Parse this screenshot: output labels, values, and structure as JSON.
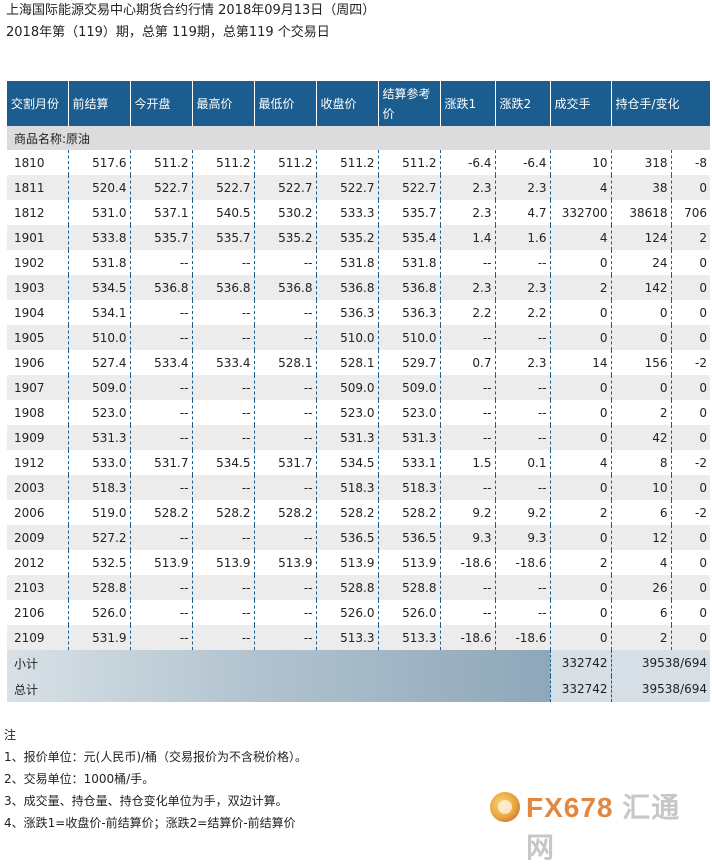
{
  "header": {
    "title": "上海国际能源交易中心期货合约行情 2018年09月13日（周四）",
    "subtitle": "2018年第（119）期，总第 119期，总第119 个交易日"
  },
  "table": {
    "columns": [
      "交割月份",
      "前结算",
      "今开盘",
      "最高价",
      "最低价",
      "收盘价",
      "结算参考价",
      "涨跌1",
      "涨跌2",
      "成交手",
      "持仓手/变化"
    ],
    "product_label": "商品名称:原油",
    "rows": [
      [
        "1810",
        "517.6",
        "511.2",
        "511.2",
        "511.2",
        "511.2",
        "511.2",
        "-6.4",
        "-6.4",
        "10",
        "318",
        "-8"
      ],
      [
        "1811",
        "520.4",
        "522.7",
        "522.7",
        "522.7",
        "522.7",
        "522.7",
        "2.3",
        "2.3",
        "4",
        "38",
        "0"
      ],
      [
        "1812",
        "531.0",
        "537.1",
        "540.5",
        "530.2",
        "533.3",
        "535.7",
        "2.3",
        "4.7",
        "332700",
        "38618",
        "706"
      ],
      [
        "1901",
        "533.8",
        "535.7",
        "535.7",
        "535.2",
        "535.2",
        "535.4",
        "1.4",
        "1.6",
        "4",
        "124",
        "2"
      ],
      [
        "1902",
        "531.8",
        "--",
        "--",
        "--",
        "531.8",
        "531.8",
        "--",
        "--",
        "0",
        "24",
        "0"
      ],
      [
        "1903",
        "534.5",
        "536.8",
        "536.8",
        "536.8",
        "536.8",
        "536.8",
        "2.3",
        "2.3",
        "2",
        "142",
        "0"
      ],
      [
        "1904",
        "534.1",
        "--",
        "--",
        "--",
        "536.3",
        "536.3",
        "2.2",
        "2.2",
        "0",
        "0",
        "0"
      ],
      [
        "1905",
        "510.0",
        "--",
        "--",
        "--",
        "510.0",
        "510.0",
        "--",
        "--",
        "0",
        "0",
        "0"
      ],
      [
        "1906",
        "527.4",
        "533.4",
        "533.4",
        "528.1",
        "528.1",
        "529.7",
        "0.7",
        "2.3",
        "14",
        "156",
        "-2"
      ],
      [
        "1907",
        "509.0",
        "--",
        "--",
        "--",
        "509.0",
        "509.0",
        "--",
        "--",
        "0",
        "0",
        "0"
      ],
      [
        "1908",
        "523.0",
        "--",
        "--",
        "--",
        "523.0",
        "523.0",
        "--",
        "--",
        "0",
        "2",
        "0"
      ],
      [
        "1909",
        "531.3",
        "--",
        "--",
        "--",
        "531.3",
        "531.3",
        "--",
        "--",
        "0",
        "42",
        "0"
      ],
      [
        "1912",
        "533.0",
        "531.7",
        "534.5",
        "531.7",
        "534.5",
        "533.1",
        "1.5",
        "0.1",
        "4",
        "8",
        "-2"
      ],
      [
        "2003",
        "518.3",
        "--",
        "--",
        "--",
        "518.3",
        "518.3",
        "--",
        "--",
        "0",
        "10",
        "0"
      ],
      [
        "2006",
        "519.0",
        "528.2",
        "528.2",
        "528.2",
        "528.2",
        "528.2",
        "9.2",
        "9.2",
        "2",
        "6",
        "-2"
      ],
      [
        "2009",
        "527.2",
        "--",
        "--",
        "--",
        "536.5",
        "536.5",
        "9.3",
        "9.3",
        "0",
        "12",
        "0"
      ],
      [
        "2012",
        "532.5",
        "513.9",
        "513.9",
        "513.9",
        "513.9",
        "513.9",
        "-18.6",
        "-18.6",
        "2",
        "4",
        "0"
      ],
      [
        "2103",
        "528.8",
        "--",
        "--",
        "--",
        "528.8",
        "528.8",
        "--",
        "--",
        "0",
        "26",
        "0"
      ],
      [
        "2106",
        "526.0",
        "--",
        "--",
        "--",
        "526.0",
        "526.0",
        "--",
        "--",
        "0",
        "6",
        "0"
      ],
      [
        "2109",
        "531.9",
        "--",
        "--",
        "--",
        "513.3",
        "513.3",
        "-18.6",
        "-18.6",
        "0",
        "2",
        "0"
      ]
    ],
    "totals": [
      {
        "label": "小计",
        "volume": "332742",
        "open_interest": "39538/694"
      },
      {
        "label": "总计",
        "volume": "332742",
        "open_interest": "39538/694"
      }
    ]
  },
  "notes": {
    "heading": "注",
    "items": [
      "1、报价单位：元(人民币)/桶（交易报价为不含税价格）。",
      "2、交易单位：1000桶/手。",
      "3、成交量、持仓量、持仓变化单位为手，双边计算。",
      "4、涨跌1=收盘价-前结算价；涨跌2=结算价-前结算价"
    ]
  },
  "logo": {
    "brand": "FX678",
    "brand_cn": "汇通网"
  }
}
